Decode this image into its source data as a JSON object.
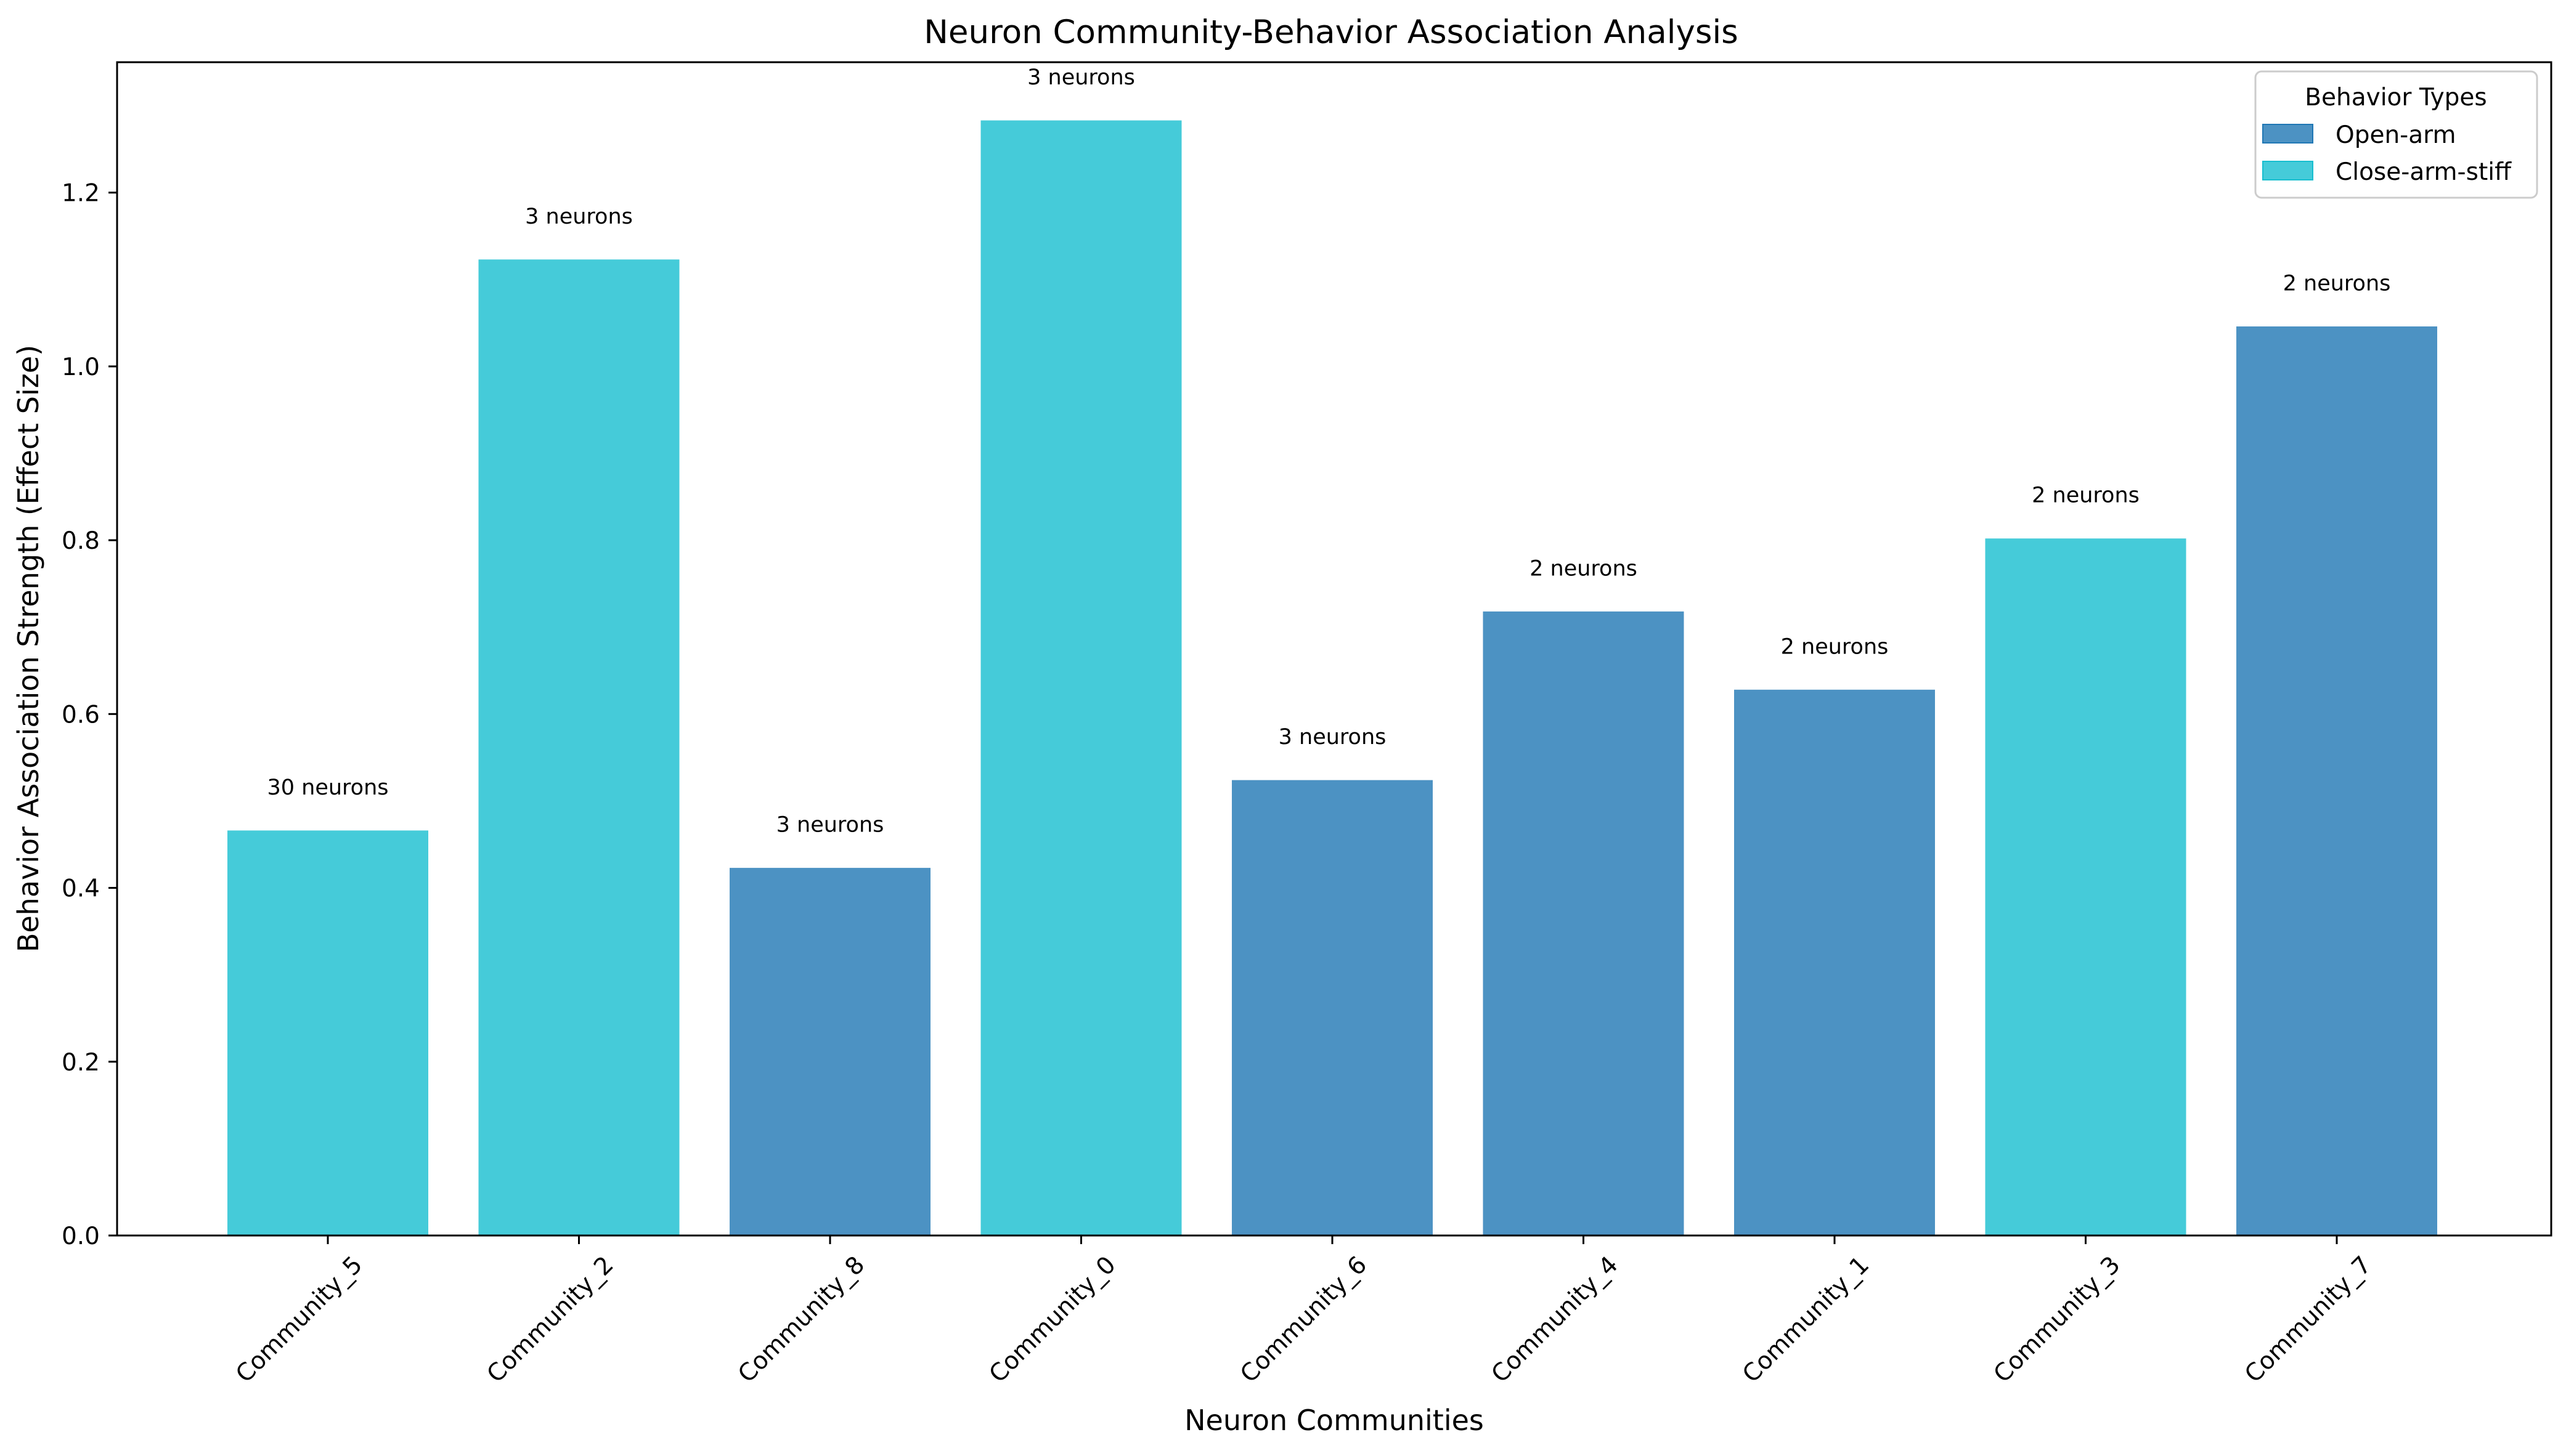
{
  "chart_data": {
    "type": "bar",
    "title": "Neuron Community-Behavior Association Analysis",
    "xlabel": "Neuron Communities",
    "ylabel": "Behavior Association Strength (Effect Size)",
    "ylim": [
      0,
      1.35
    ],
    "yticks": [
      "0.0",
      "0.2",
      "0.4",
      "0.6",
      "0.8",
      "1.0",
      "1.2"
    ],
    "grid": false,
    "categories": [
      "Community_5",
      "Community_2",
      "Community_8",
      "Community_0",
      "Community_6",
      "Community_4",
      "Community_1",
      "Community_3",
      "Community_7"
    ],
    "values": [
      0.466,
      1.123,
      0.423,
      1.283,
      0.524,
      0.718,
      0.628,
      0.802,
      1.046
    ],
    "behaviors": [
      "Close-arm-stiff",
      "Close-arm-stiff",
      "Open-arm",
      "Close-arm-stiff",
      "Open-arm",
      "Open-arm",
      "Open-arm",
      "Close-arm-stiff",
      "Open-arm"
    ],
    "annotations": [
      "30 neurons",
      "3 neurons",
      "3 neurons",
      "3 neurons",
      "3 neurons",
      "2 neurons",
      "2 neurons",
      "2 neurons",
      "2 neurons"
    ],
    "legend": {
      "title": "Behavior Types",
      "position": "top-right",
      "entries": [
        {
          "label": "Open-arm",
          "color": "#1f77b4"
        },
        {
          "label": "Close-arm-stiff",
          "color": "#17becf"
        }
      ]
    },
    "bar_alpha": 0.8
  }
}
